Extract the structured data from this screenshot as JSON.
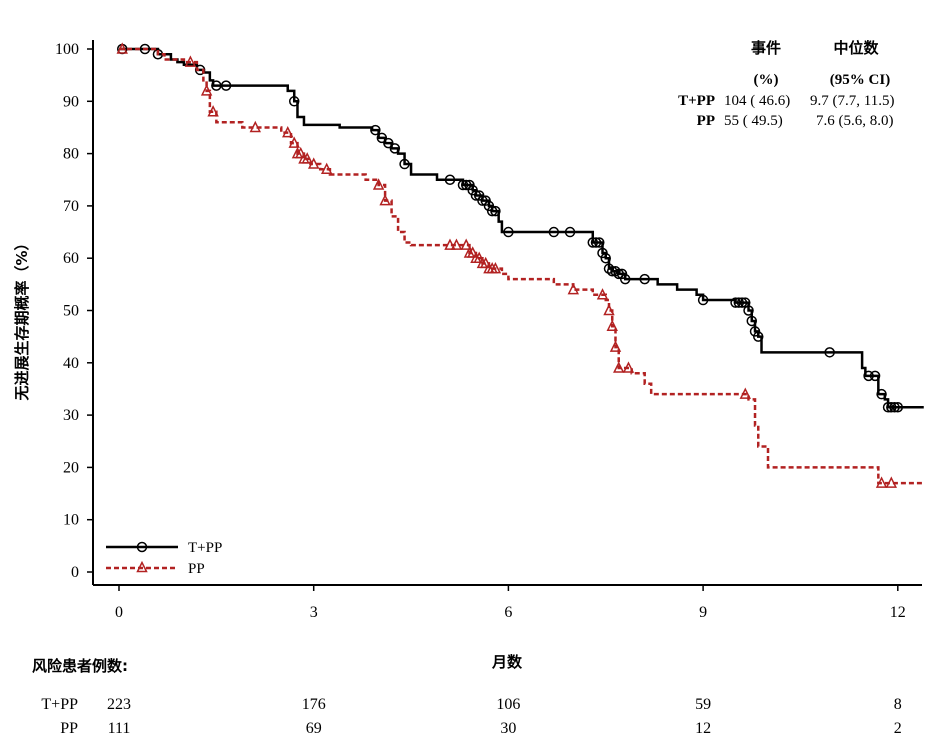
{
  "chart_data": {
    "type": "line",
    "title": "",
    "xlabel": "月数",
    "ylabel": "无进展生存期概率（%）",
    "xlim": [
      0,
      12.4
    ],
    "ylim": [
      0,
      100
    ],
    "x_ticks": [
      "0",
      "3",
      "6",
      "9",
      "12"
    ],
    "y_ticks": [
      "0",
      "10",
      "20",
      "30",
      "40",
      "50",
      "60",
      "70",
      "80",
      "90",
      "100"
    ],
    "grid": false,
    "legend_position": "bottom-left",
    "series": [
      {
        "name": "T+PP",
        "color": "#000000",
        "line_style": "solid",
        "marker": "circle",
        "steps": [
          [
            0,
            100
          ],
          [
            0.6,
            99
          ],
          [
            0.8,
            98
          ],
          [
            0.9,
            97.5
          ],
          [
            1.0,
            97
          ],
          [
            1.2,
            96
          ],
          [
            1.3,
            95.5
          ],
          [
            1.4,
            94
          ],
          [
            1.45,
            93
          ],
          [
            2.6,
            92
          ],
          [
            2.7,
            90
          ],
          [
            2.75,
            87
          ],
          [
            2.85,
            85.5
          ],
          [
            3.4,
            85
          ],
          [
            3.9,
            84.5
          ],
          [
            4.0,
            83
          ],
          [
            4.1,
            82
          ],
          [
            4.2,
            81
          ],
          [
            4.3,
            80
          ],
          [
            4.4,
            78
          ],
          [
            4.5,
            76
          ],
          [
            4.9,
            75
          ],
          [
            5.3,
            74
          ],
          [
            5.45,
            73
          ],
          [
            5.5,
            72
          ],
          [
            5.6,
            71
          ],
          [
            5.7,
            70
          ],
          [
            5.75,
            69
          ],
          [
            5.85,
            67
          ],
          [
            5.9,
            65
          ],
          [
            7.3,
            63
          ],
          [
            7.45,
            61
          ],
          [
            7.5,
            60
          ],
          [
            7.55,
            58
          ],
          [
            7.6,
            57.5
          ],
          [
            7.7,
            57
          ],
          [
            7.8,
            56
          ],
          [
            8.3,
            55
          ],
          [
            8.6,
            54
          ],
          [
            8.9,
            53
          ],
          [
            9.0,
            52
          ],
          [
            9.5,
            51.5
          ],
          [
            9.7,
            50
          ],
          [
            9.75,
            48
          ],
          [
            9.8,
            46
          ],
          [
            9.85,
            45
          ],
          [
            9.9,
            42
          ],
          [
            11.45,
            39
          ],
          [
            11.5,
            37.5
          ],
          [
            11.7,
            34
          ],
          [
            11.8,
            33
          ],
          [
            11.85,
            31.5
          ],
          [
            12.4,
            31.5
          ]
        ],
        "censor_x": [
          0.05,
          0.4,
          0.6,
          1.25,
          1.5,
          1.65,
          2.7,
          3.95,
          4.05,
          4.15,
          4.25,
          4.4,
          5.1,
          5.3,
          5.35,
          5.4,
          5.45,
          5.5,
          5.55,
          5.6,
          5.65,
          5.7,
          5.75,
          5.8,
          6.0,
          6.7,
          6.95,
          7.3,
          7.35,
          7.4,
          7.45,
          7.5,
          7.55,
          7.6,
          7.65,
          7.7,
          7.75,
          7.8,
          8.1,
          9.0,
          9.5,
          9.55,
          9.6,
          9.65,
          9.7,
          9.75,
          9.8,
          9.85,
          10.95,
          11.55,
          11.65,
          11.75,
          11.85,
          11.9,
          11.95,
          12.0
        ]
      },
      {
        "name": "PP",
        "color": "#b22222",
        "line_style": "dashed",
        "marker": "triangle",
        "steps": [
          [
            0,
            100
          ],
          [
            0.6,
            99
          ],
          [
            0.7,
            98
          ],
          [
            1.0,
            97.5
          ],
          [
            1.2,
            96
          ],
          [
            1.3,
            94
          ],
          [
            1.35,
            92
          ],
          [
            1.4,
            88
          ],
          [
            1.5,
            86
          ],
          [
            1.9,
            85
          ],
          [
            2.5,
            84
          ],
          [
            2.65,
            82
          ],
          [
            2.75,
            80
          ],
          [
            2.85,
            79
          ],
          [
            2.95,
            78
          ],
          [
            3.1,
            77
          ],
          [
            3.25,
            76
          ],
          [
            3.8,
            75
          ],
          [
            4.0,
            74
          ],
          [
            4.1,
            71
          ],
          [
            4.2,
            68
          ],
          [
            4.3,
            65
          ],
          [
            4.4,
            63
          ],
          [
            4.5,
            62.5
          ],
          [
            5.4,
            61
          ],
          [
            5.5,
            60
          ],
          [
            5.6,
            59
          ],
          [
            5.7,
            58
          ],
          [
            5.9,
            57
          ],
          [
            6.0,
            56
          ],
          [
            6.7,
            55
          ],
          [
            7.0,
            54
          ],
          [
            7.3,
            53
          ],
          [
            7.5,
            52
          ],
          [
            7.55,
            50
          ],
          [
            7.6,
            47
          ],
          [
            7.65,
            43
          ],
          [
            7.7,
            39
          ],
          [
            7.9,
            38
          ],
          [
            8.1,
            36
          ],
          [
            8.2,
            34
          ],
          [
            9.7,
            33
          ],
          [
            9.8,
            28
          ],
          [
            9.85,
            24
          ],
          [
            10.0,
            20
          ],
          [
            11.7,
            17
          ],
          [
            12.4,
            17
          ]
        ],
        "censor_x": [
          0.05,
          1.1,
          1.35,
          1.45,
          2.1,
          2.6,
          2.7,
          2.75,
          2.8,
          2.85,
          2.9,
          3.0,
          3.2,
          4.0,
          4.1,
          5.1,
          5.2,
          5.35,
          5.4,
          5.45,
          5.5,
          5.55,
          5.6,
          5.65,
          5.7,
          5.75,
          5.8,
          7.0,
          7.45,
          7.55,
          7.6,
          7.65,
          7.7,
          7.85,
          9.65,
          11.75,
          11.9
        ]
      }
    ],
    "stats_table": {
      "header_row1": [
        "事件",
        "中位数"
      ],
      "header_row2": [
        "(%)",
        "(95% CI)"
      ],
      "rows": [
        {
          "label": "T+PP",
          "events": "104 ( 46.6)",
          "median": "9.7 (7.7, 11.5)"
        },
        {
          "label": "PP",
          "events": "55 ( 49.5)",
          "median": "7.6 (5.6, 8.0)"
        }
      ]
    },
    "risk_table": {
      "title": "风险患者例数:",
      "timepoints": [
        0,
        3,
        6,
        9,
        12
      ],
      "rows": [
        {
          "label": "T+PP",
          "counts": [
            "223",
            "176",
            "106",
            "59",
            "8"
          ]
        },
        {
          "label": "PP",
          "counts": [
            "111",
            "69",
            "30",
            "12",
            "2"
          ]
        }
      ]
    }
  }
}
